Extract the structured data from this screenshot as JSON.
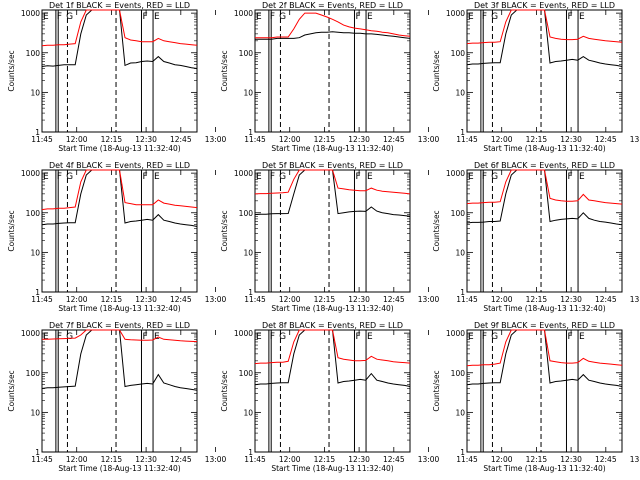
{
  "figure": {
    "start_time_text": "Start Time (18-Aug-13 11:32:40)",
    "ylabel": "Counts/sec",
    "x_tick_labels": [
      "11:45",
      "12:00",
      "12:15",
      "12:30",
      "12:45",
      "13:00"
    ],
    "y_tick_labels": [
      "1",
      "10",
      "100",
      "1000"
    ],
    "colors": {
      "events": "#000000",
      "lld": "#ff0000"
    }
  },
  "chart_data": [
    {
      "type": "line",
      "title": "Det 1f BLACK = Events, RED = LLD",
      "xlabel": "Start Time (18-Aug-13 11:32:40)",
      "ylabel": "Counts/sec",
      "yscale": "log",
      "ylim": [
        1,
        1200
      ],
      "xlim_minutes": [
        -17,
        50
      ],
      "markers": [
        {
          "label": "E",
          "t": -17
        },
        {
          "label": "F",
          "t": -11
        },
        {
          "label": "G",
          "t": -7
        },
        {
          "label": "F",
          "t": 26
        },
        {
          "label": "E",
          "t": 31
        }
      ],
      "solid_lines": [
        -11,
        -10,
        26,
        31
      ],
      "dashed_lines": [
        -6,
        15
      ],
      "series": [
        {
          "name": "Events",
          "values": [
            45,
            47,
            46,
            48,
            50,
            50,
            50,
            300,
            900,
            1200,
            1200,
            1200,
            1200,
            1200,
            1200,
            48,
            55,
            56,
            60,
            62,
            60,
            80,
            60,
            55,
            50,
            48,
            45,
            42,
            40
          ]
        },
        {
          "name": "LLD",
          "values": [
            150,
            155,
            155,
            160,
            160,
            165,
            170,
            600,
            1200,
            1200,
            1200,
            1200,
            1200,
            1200,
            1200,
            240,
            210,
            200,
            190,
            190,
            190,
            230,
            200,
            190,
            180,
            170,
            165,
            160,
            155
          ]
        }
      ]
    },
    {
      "type": "line",
      "title": "Det 2f BLACK = Events, RED = LLD",
      "xlabel": "Start Time (18-Aug-13 11:32:40)",
      "ylabel": "Counts/sec",
      "yscale": "log",
      "ylim": [
        1,
        1200
      ],
      "xlim_minutes": [
        -17,
        50
      ],
      "markers": [
        {
          "label": "E",
          "t": -17
        },
        {
          "label": "F",
          "t": -11
        },
        {
          "label": "G",
          "t": -7
        },
        {
          "label": "F",
          "t": 26
        },
        {
          "label": "E",
          "t": 31
        }
      ],
      "solid_lines": [
        -11,
        -10,
        26,
        31
      ],
      "dashed_lines": [
        -6,
        15
      ],
      "series": [
        {
          "name": "Events",
          "values": [
            220,
            220,
            220,
            220,
            230,
            230,
            230,
            230,
            240,
            280,
            300,
            320,
            330,
            330,
            340,
            330,
            320,
            320,
            310,
            310,
            300,
            300,
            290,
            280,
            270,
            260,
            250,
            240,
            230
          ]
        },
        {
          "name": "LLD",
          "values": [
            240,
            240,
            240,
            240,
            250,
            250,
            250,
            400,
            700,
            1000,
            1000,
            1000,
            900,
            800,
            700,
            600,
            500,
            450,
            420,
            400,
            380,
            360,
            350,
            330,
            320,
            300,
            280,
            270,
            260
          ]
        }
      ]
    },
    {
      "type": "line",
      "title": "Det 3f BLACK = Events, RED = LLD",
      "xlabel": "Start Time (18-Aug-13 11:32:40)",
      "ylabel": "Counts/sec",
      "yscale": "log",
      "ylim": [
        1,
        1200
      ],
      "xlim_minutes": [
        -17,
        50
      ],
      "markers": [
        {
          "label": "E",
          "t": -17
        },
        {
          "label": "F",
          "t": -11
        },
        {
          "label": "G",
          "t": -7
        },
        {
          "label": "F",
          "t": 26
        },
        {
          "label": "E",
          "t": 31
        }
      ],
      "solid_lines": [
        -11,
        -10,
        26,
        31
      ],
      "dashed_lines": [
        -6,
        15
      ],
      "series": [
        {
          "name": "Events",
          "values": [
            50,
            52,
            52,
            54,
            55,
            56,
            56,
            300,
            900,
            1200,
            1200,
            1200,
            1200,
            1200,
            1200,
            55,
            60,
            62,
            65,
            68,
            65,
            80,
            65,
            60,
            55,
            52,
            50,
            48,
            45
          ]
        },
        {
          "name": "LLD",
          "values": [
            170,
            175,
            175,
            180,
            185,
            185,
            190,
            600,
            1200,
            1200,
            1200,
            1200,
            1200,
            1200,
            1200,
            250,
            230,
            220,
            215,
            215,
            220,
            260,
            230,
            220,
            210,
            200,
            195,
            190,
            185
          ]
        }
      ]
    },
    {
      "type": "line",
      "title": "Det 4f BLACK = Events, RED = LLD",
      "xlabel": "Start Time (18-Aug-13 11:32:40)",
      "ylabel": "Counts/sec",
      "yscale": "log",
      "ylim": [
        1,
        1200
      ],
      "xlim_minutes": [
        -17,
        50
      ],
      "markers": [
        {
          "label": "E",
          "t": -17
        },
        {
          "label": "F",
          "t": -11
        },
        {
          "label": "G",
          "t": -7
        },
        {
          "label": "F",
          "t": 26
        },
        {
          "label": "E",
          "t": 31
        }
      ],
      "solid_lines": [
        -11,
        -10,
        26,
        31
      ],
      "dashed_lines": [
        -6,
        15
      ],
      "series": [
        {
          "name": "Events",
          "values": [
            50,
            52,
            52,
            54,
            55,
            56,
            56,
            300,
            900,
            1200,
            1200,
            1200,
            1200,
            1200,
            1200,
            55,
            60,
            62,
            65,
            68,
            65,
            90,
            65,
            60,
            55,
            52,
            50,
            48,
            45
          ]
        },
        {
          "name": "LLD",
          "values": [
            120,
            125,
            125,
            130,
            130,
            135,
            140,
            600,
            1200,
            1200,
            1200,
            1200,
            1200,
            1200,
            1200,
            180,
            170,
            160,
            160,
            160,
            160,
            210,
            175,
            165,
            155,
            150,
            145,
            140,
            135
          ]
        }
      ]
    },
    {
      "type": "line",
      "title": "Det 5f BLACK = Events, RED = LLD",
      "xlabel": "Start Time (18-Aug-13 11:32:40)",
      "ylabel": "Counts/sec",
      "yscale": "log",
      "ylim": [
        1,
        1200
      ],
      "xlim_minutes": [
        -17,
        50
      ],
      "markers": [
        {
          "label": "E",
          "t": -17
        },
        {
          "label": "F",
          "t": -11
        },
        {
          "label": "G",
          "t": -7
        },
        {
          "label": "F",
          "t": 26
        },
        {
          "label": "E",
          "t": 31
        }
      ],
      "solid_lines": [
        -11,
        -10,
        26,
        31
      ],
      "dashed_lines": [
        -6,
        15
      ],
      "series": [
        {
          "name": "Events",
          "values": [
            90,
            92,
            92,
            94,
            95,
            95,
            96,
            300,
            900,
            1200,
            1200,
            1200,
            1200,
            1200,
            1200,
            95,
            100,
            105,
            108,
            110,
            108,
            140,
            110,
            100,
            95,
            90,
            88,
            85,
            82
          ]
        },
        {
          "name": "LLD",
          "values": [
            300,
            305,
            305,
            310,
            315,
            320,
            330,
            700,
            1200,
            1200,
            1200,
            1200,
            1200,
            1200,
            1200,
            420,
            400,
            380,
            370,
            360,
            360,
            420,
            370,
            350,
            340,
            330,
            320,
            310,
            300
          ]
        }
      ]
    },
    {
      "type": "line",
      "title": "Det 6f BLACK = Events, RED = LLD",
      "xlabel": "Start Time (18-Aug-13 11:32:40)",
      "ylabel": "Counts/sec",
      "yscale": "log",
      "ylim": [
        1,
        1200
      ],
      "xlim_minutes": [
        -17,
        50
      ],
      "markers": [
        {
          "label": "E",
          "t": -17
        },
        {
          "label": "F",
          "t": -11
        },
        {
          "label": "G",
          "t": -7
        },
        {
          "label": "F",
          "t": 26
        },
        {
          "label": "E",
          "t": 31
        }
      ],
      "solid_lines": [
        -11,
        -10,
        26,
        31
      ],
      "dashed_lines": [
        -6,
        15
      ],
      "series": [
        {
          "name": "Events",
          "values": [
            55,
            57,
            57,
            58,
            60,
            60,
            62,
            300,
            900,
            1200,
            1200,
            1200,
            1200,
            1200,
            1200,
            60,
            65,
            68,
            70,
            72,
            70,
            100,
            72,
            65,
            60,
            58,
            55,
            52,
            50
          ]
        },
        {
          "name": "LLD",
          "values": [
            170,
            175,
            175,
            180,
            185,
            185,
            190,
            600,
            1200,
            1200,
            1200,
            1200,
            1200,
            1200,
            1200,
            230,
            210,
            200,
            195,
            195,
            200,
            290,
            210,
            200,
            190,
            180,
            175,
            170,
            165
          ]
        }
      ]
    },
    {
      "type": "line",
      "title": "Det 7f BLACK = Events, RED = LLD",
      "xlabel": "Start Time (18-Aug-13 11:32:40)",
      "ylabel": "Counts/sec",
      "yscale": "log",
      "ylim": [
        1,
        1200
      ],
      "xlim_minutes": [
        -17,
        50
      ],
      "markers": [
        {
          "label": "E",
          "t": -17
        },
        {
          "label": "F",
          "t": -11
        },
        {
          "label": "G",
          "t": -7
        },
        {
          "label": "F",
          "t": 26
        },
        {
          "label": "E",
          "t": 31
        }
      ],
      "solid_lines": [
        -11,
        -10,
        26,
        31
      ],
      "dashed_lines": [
        -6,
        15
      ],
      "series": [
        {
          "name": "Events",
          "values": [
            40,
            42,
            42,
            43,
            44,
            45,
            46,
            300,
            900,
            1200,
            1200,
            1200,
            1200,
            1200,
            1200,
            45,
            48,
            50,
            52,
            54,
            52,
            90,
            55,
            50,
            45,
            42,
            40,
            38,
            36
          ]
        },
        {
          "name": "LLD",
          "values": [
            700,
            700,
            710,
            720,
            730,
            740,
            750,
            900,
            1200,
            1200,
            1200,
            1200,
            1200,
            1200,
            1200,
            700,
            680,
            670,
            660,
            660,
            670,
            800,
            700,
            680,
            660,
            640,
            630,
            620,
            610
          ]
        }
      ]
    },
    {
      "type": "line",
      "title": "Det 8f BLACK = Events, RED = LLD",
      "xlabel": "Start Time (18-Aug-13 11:32:40)",
      "ylabel": "Counts/sec",
      "yscale": "log",
      "ylim": [
        1,
        1200
      ],
      "xlim_minutes": [
        -17,
        50
      ],
      "markers": [
        {
          "label": "E",
          "t": -17
        },
        {
          "label": "F",
          "t": -11
        },
        {
          "label": "G",
          "t": -7
        },
        {
          "label": "F",
          "t": 26
        },
        {
          "label": "E",
          "t": 31
        }
      ],
      "solid_lines": [
        -11,
        -10,
        26,
        31
      ],
      "dashed_lines": [
        -6,
        15
      ],
      "series": [
        {
          "name": "Events",
          "values": [
            50,
            52,
            52,
            54,
            55,
            56,
            56,
            300,
            900,
            1200,
            1200,
            1200,
            1200,
            1200,
            1200,
            55,
            60,
            62,
            65,
            68,
            65,
            95,
            65,
            60,
            55,
            52,
            50,
            48,
            45
          ]
        },
        {
          "name": "LLD",
          "values": [
            170,
            175,
            175,
            180,
            185,
            185,
            195,
            600,
            1200,
            1200,
            1200,
            1200,
            1200,
            1200,
            1200,
            240,
            220,
            210,
            200,
            200,
            205,
            260,
            220,
            210,
            200,
            190,
            185,
            180,
            175
          ]
        }
      ]
    },
    {
      "type": "line",
      "title": "Det 9f BLACK = Events, RED = LLD",
      "xlabel": "Start Time (18-Aug-13 11:32:40)",
      "ylabel": "Counts/sec",
      "yscale": "log",
      "ylim": [
        1,
        1200
      ],
      "xlim_minutes": [
        -17,
        50
      ],
      "markers": [
        {
          "label": "E",
          "t": -17
        },
        {
          "label": "F",
          "t": -11
        },
        {
          "label": "G",
          "t": -7
        },
        {
          "label": "F",
          "t": 26
        },
        {
          "label": "E",
          "t": 31
        }
      ],
      "solid_lines": [
        -11,
        -10,
        26,
        31
      ],
      "dashed_lines": [
        -6,
        15
      ],
      "series": [
        {
          "name": "Events",
          "values": [
            50,
            52,
            52,
            54,
            55,
            56,
            56,
            300,
            900,
            1200,
            1200,
            1200,
            1200,
            1200,
            1200,
            55,
            60,
            62,
            65,
            68,
            65,
            90,
            65,
            60,
            55,
            52,
            50,
            48,
            45
          ]
        },
        {
          "name": "LLD",
          "values": [
            150,
            155,
            155,
            160,
            160,
            165,
            175,
            600,
            1200,
            1200,
            1200,
            1200,
            1200,
            1200,
            1200,
            200,
            190,
            180,
            175,
            175,
            180,
            230,
            195,
            185,
            175,
            170,
            165,
            160,
            155
          ]
        }
      ]
    }
  ]
}
